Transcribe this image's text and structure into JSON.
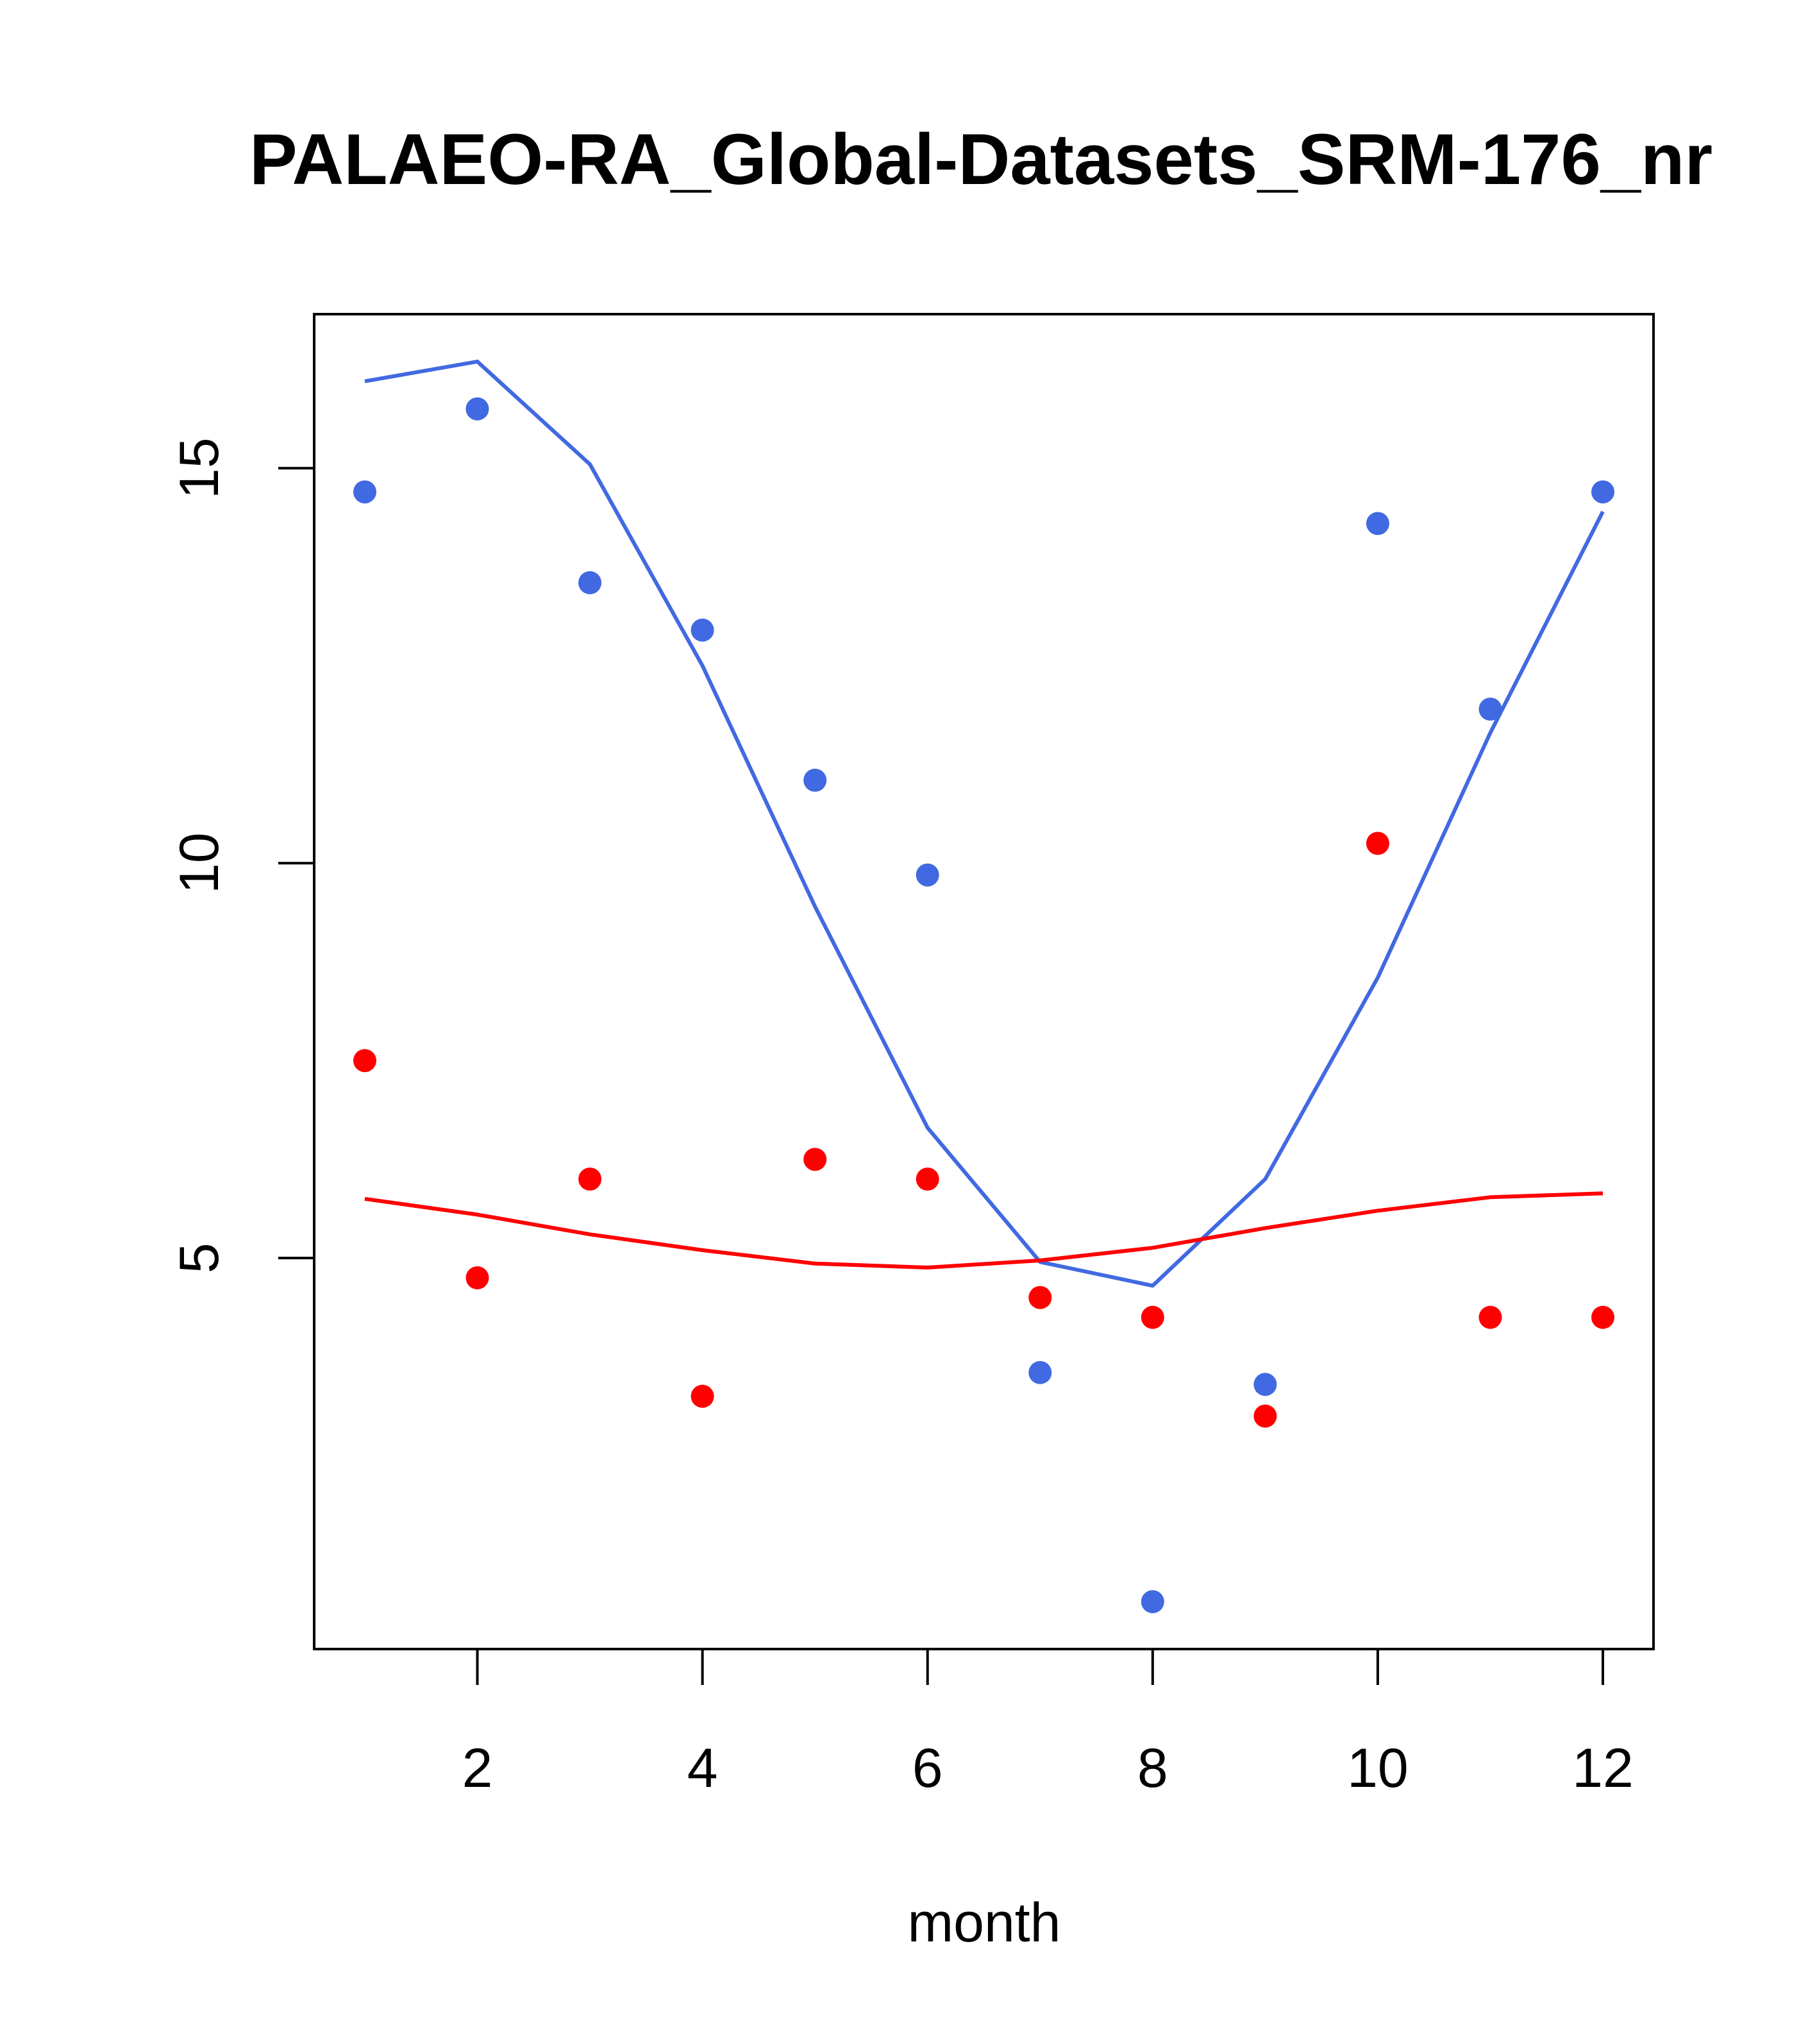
{
  "chart_data": {
    "type": "scatter",
    "title": "PALAEO-RA_Global-Datasets_SRM-176_nr",
    "xlabel": "month",
    "ylabel": "",
    "xlim": [
      0.55,
      12.45
    ],
    "ylim": [
      0.05,
      16.95
    ],
    "x_ticks": [
      2,
      4,
      6,
      8,
      10,
      12
    ],
    "y_ticks": [
      5,
      10,
      15
    ],
    "x_tick_labels": [
      "2",
      "4",
      "6",
      "8",
      "10",
      "12"
    ],
    "y_tick_labels": [
      "5",
      "10",
      "15"
    ],
    "grid": false,
    "series": [
      {
        "name": "blue points",
        "kind": "points",
        "color": "#4169E1",
        "x": [
          1,
          2,
          3,
          4,
          5,
          6,
          7,
          8,
          9,
          10,
          11,
          12
        ],
        "values": [
          14.7,
          15.75,
          13.55,
          12.95,
          11.05,
          9.85,
          3.55,
          0.65,
          3.4,
          14.3,
          11.95,
          14.7
        ]
      },
      {
        "name": "red points",
        "kind": "points",
        "color": "#FF0000",
        "x": [
          1,
          2,
          3,
          4,
          5,
          6,
          7,
          8,
          9,
          10,
          11,
          12
        ],
        "values": [
          7.5,
          4.75,
          6.0,
          3.25,
          6.25,
          6.0,
          4.5,
          4.25,
          3.0,
          10.25,
          4.25,
          4.25
        ]
      },
      {
        "name": "blue line",
        "kind": "line",
        "color": "#4169E1",
        "x": [
          1,
          2,
          3,
          4,
          5,
          6,
          7,
          8,
          9,
          10,
          11,
          12
        ],
        "values": [
          16.1,
          16.35,
          15.05,
          12.5,
          9.45,
          6.65,
          4.95,
          4.65,
          6.0,
          8.55,
          11.65,
          14.45
        ]
      },
      {
        "name": "red line",
        "kind": "line",
        "color": "#FF0000",
        "x": [
          1,
          2,
          3,
          4,
          5,
          6,
          7,
          8,
          9,
          10,
          11,
          12
        ],
        "values": [
          5.75,
          5.55,
          5.3,
          5.1,
          4.93,
          4.88,
          4.97,
          5.13,
          5.38,
          5.6,
          5.77,
          5.82
        ]
      }
    ]
  }
}
